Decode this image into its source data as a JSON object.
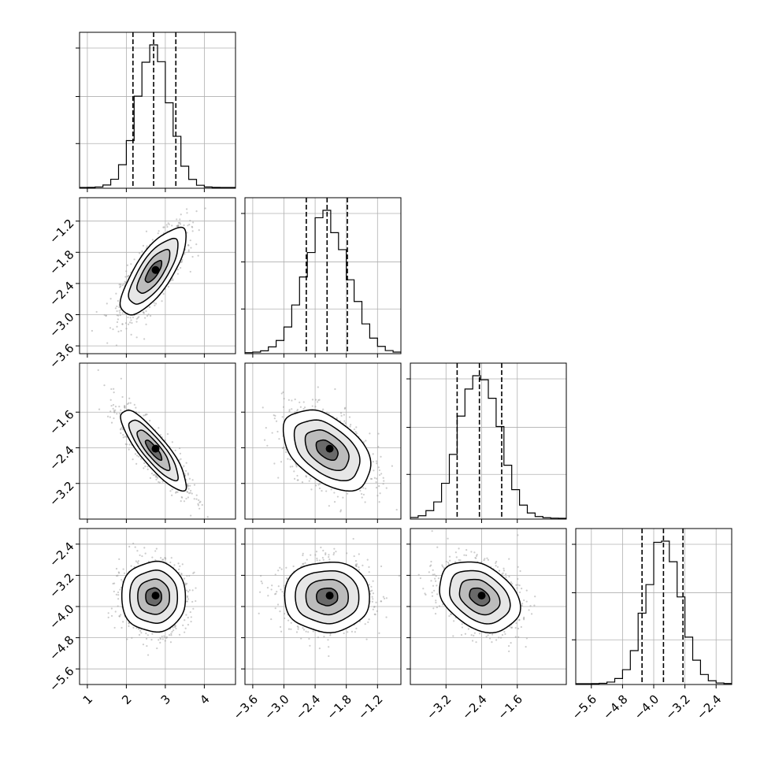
{
  "chart_data": {
    "type": "corner",
    "grid": true,
    "parameters": [
      {
        "range": [
          0.8,
          4.8
        ],
        "ticks": [
          1,
          2,
          3,
          4
        ],
        "tick_labels": [
          "1",
          "2",
          "3",
          "4"
        ],
        "mean": 2.7,
        "sigma": 0.42,
        "quantiles": [
          2.17,
          2.7,
          3.27
        ]
      },
      {
        "range": [
          -3.75,
          -0.75
        ],
        "ticks": [
          -3.6,
          -3.0,
          -2.4,
          -1.8,
          -1.2
        ],
        "tick_labels": [
          "−3.6",
          "−3.0",
          "−2.4",
          "−1.8",
          "−1.2"
        ],
        "mean": -2.17,
        "sigma": 0.42,
        "quantiles": [
          -2.57,
          -2.17,
          -1.78
        ]
      },
      {
        "range": [
          -4.0,
          -0.5
        ],
        "ticks": [
          -3.2,
          -2.4,
          -1.6
        ],
        "tick_labels": [
          "−3.2",
          "−2.4",
          "−1.6"
        ],
        "mean": -2.45,
        "sigma": 0.45,
        "quantiles": [
          -2.95,
          -2.45,
          -1.95
        ]
      },
      {
        "range": [
          -6.0,
          -2.0
        ],
        "ticks": [
          -5.6,
          -4.8,
          -4.0,
          -3.2,
          -2.4
        ],
        "tick_labels": [
          "−5.6",
          "−4.8",
          "−4.0",
          "−3.2",
          "−2.4"
        ],
        "mean": -3.75,
        "sigma": 0.45,
        "quantiles": [
          -4.3,
          -3.75,
          -3.25
        ]
      }
    ],
    "row_tick_labels": [
      [],
      [
        "−1.2",
        "−1.8",
        "−2.4",
        "−3.0",
        "−3.6"
      ],
      [
        "−1.6",
        "−2.4",
        "−3.2"
      ],
      [
        "−2.4",
        "−3.2",
        "−4.0",
        "−4.8",
        "−5.6"
      ]
    ],
    "correlations": [
      [
        1.0,
        0.75,
        -0.85,
        0.0
      ],
      [
        0.75,
        1.0,
        -0.45,
        0.0
      ],
      [
        -0.85,
        -0.45,
        1.0,
        -0.3
      ],
      [
        0.0,
        0.0,
        -0.3,
        1.0
      ]
    ],
    "contour_levels_sigma": [
      0.5,
      1.0,
      1.5,
      2.0
    ],
    "quantile_line_style": "dashed",
    "histogram_bins": 20
  }
}
